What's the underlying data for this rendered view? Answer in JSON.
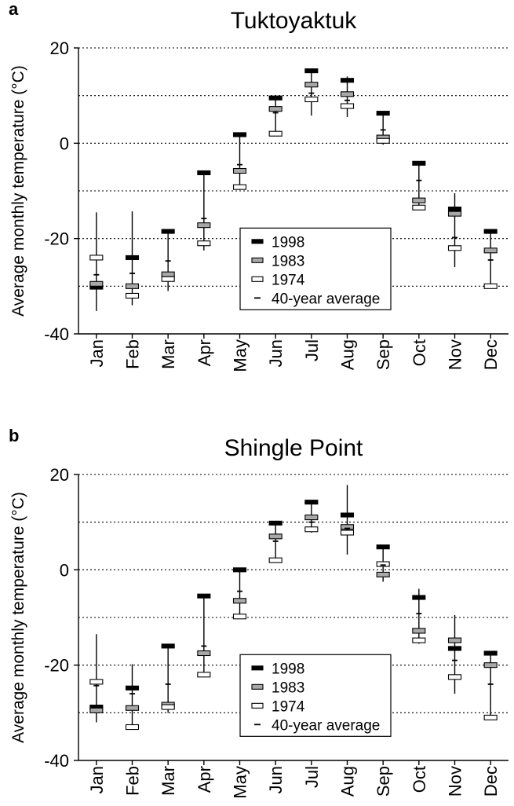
{
  "chart_data": [
    {
      "type": "box",
      "panel": "a",
      "title": "Tuktoyaktuk",
      "ylabel": "Average monthly temperature (°C)",
      "ylim": [
        -40,
        20
      ],
      "yticks": [
        20,
        0,
        -20,
        -40
      ],
      "grid_lines_y": [
        20,
        10,
        0,
        -10,
        -20,
        -30
      ],
      "categories": [
        "Jan",
        "Feb",
        "Mar",
        "Apr",
        "May",
        "Jun",
        "Jul",
        "Aug",
        "Sep",
        "Oct",
        "Nov",
        "Dec"
      ],
      "legend": {
        "position": "lower-center",
        "entries": [
          "1998",
          "1983",
          "1974",
          "40-year average"
        ]
      },
      "range": {
        "low": [
          -35.2,
          -34.0,
          -31.0,
          -22.5,
          -9.8,
          1.5,
          5.8,
          5.5,
          -0.3,
          -14.0,
          -26.0,
          -30.5
        ],
        "high": [
          -14.5,
          -14.3,
          -18.5,
          -6.2,
          1.8,
          9.5,
          15.0,
          14.0,
          6.3,
          -4.2,
          -10.5,
          -18.5
        ]
      },
      "series": [
        {
          "name": "1998",
          "values": [
            -30.2,
            -24.0,
            -18.5,
            -6.2,
            1.8,
            9.5,
            15.2,
            13.2,
            6.3,
            -4.2,
            -13.8,
            -18.5
          ]
        },
        {
          "name": "1983",
          "values": [
            -29.5,
            -30.0,
            -27.5,
            -17.2,
            -5.8,
            7.2,
            12.3,
            10.3,
            1.2,
            -12.0,
            -14.8,
            -22.5
          ]
        },
        {
          "name": "1974",
          "values": [
            -24.0,
            -32.0,
            -28.5,
            -21.0,
            -9.2,
            2.0,
            9.2,
            7.8,
            0.5,
            -13.5,
            -22.0,
            -30.0
          ]
        },
        {
          "name": "40-year average",
          "values": [
            -27.6,
            -27.3,
            -24.7,
            -15.8,
            -4.5,
            6.4,
            10.5,
            9.0,
            2.8,
            -7.8,
            -19.8,
            -24.5
          ]
        }
      ]
    },
    {
      "type": "box",
      "panel": "b",
      "title": "Shingle Point",
      "ylabel": "Average monthly temperature (°C)",
      "ylim": [
        -40,
        20
      ],
      "yticks": [
        20,
        0,
        -20,
        -40
      ],
      "grid_lines_y": [
        20,
        10,
        0,
        -10,
        -20,
        -30
      ],
      "categories": [
        "Jan",
        "Feb",
        "Mar",
        "Apr",
        "May",
        "Jun",
        "Jul",
        "Aug",
        "Sep",
        "Oct",
        "Nov",
        "Dec"
      ],
      "legend": {
        "position": "lower-center",
        "entries": [
          "1998",
          "1983",
          "1974",
          "40-year average"
        ]
      },
      "range": {
        "low": [
          -32.0,
          -32.5,
          -30.0,
          -22.5,
          -10.0,
          1.5,
          7.8,
          3.2,
          -2.5,
          -15.5,
          -26.0,
          -31.0
        ],
        "high": [
          -13.5,
          -19.8,
          -16.0,
          -5.5,
          0.0,
          9.8,
          14.2,
          17.8,
          4.8,
          -4.0,
          -9.5,
          -17.5
        ]
      },
      "series": [
        {
          "name": "1998",
          "values": [
            -28.8,
            -24.8,
            -16.0,
            -5.5,
            0.0,
            9.8,
            14.2,
            11.5,
            4.8,
            -5.8,
            -16.5,
            -17.5
          ]
        },
        {
          "name": "1983",
          "values": [
            -29.5,
            -29.0,
            -28.3,
            -17.5,
            -6.5,
            7.0,
            11.0,
            9.0,
            -1.0,
            -12.8,
            -14.8,
            -20.0
          ]
        },
        {
          "name": "1974",
          "values": [
            -23.5,
            -33.0,
            -28.8,
            -22.0,
            -9.8,
            2.0,
            8.5,
            7.8,
            1.2,
            -14.8,
            -22.5,
            -31.0
          ]
        },
        {
          "name": "40-year average",
          "values": [
            -24.3,
            -26.0,
            -24.0,
            -16.0,
            -4.5,
            6.0,
            10.0,
            8.7,
            1.0,
            -9.2,
            -19.0,
            -24.0
          ]
        }
      ]
    }
  ]
}
